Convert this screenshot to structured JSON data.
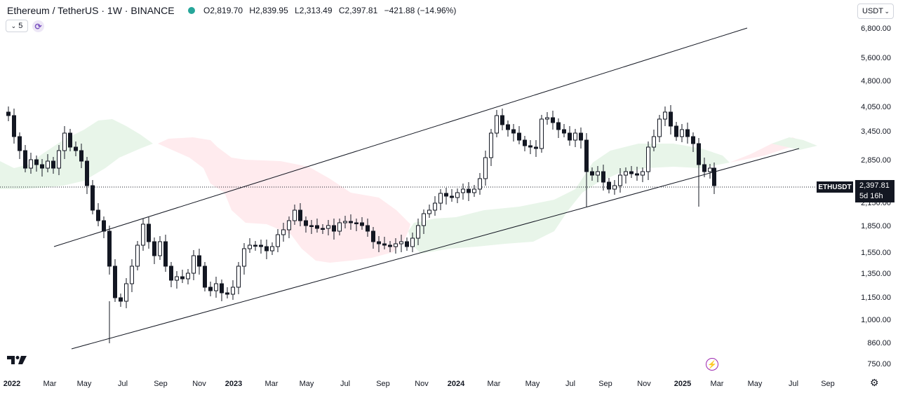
{
  "header": {
    "symbol": "Ethereum / TetherUS · 1W · BINANCE",
    "open": "O2,819.70",
    "high": "H2,839.95",
    "low": "L2,313.49",
    "close": "C2,397.81",
    "change": "−421.88 (−14.96%)"
  },
  "indicator": {
    "count": "5"
  },
  "currency_selector": {
    "value": "USDT"
  },
  "price_axis": {
    "ticks": [
      "6,800.00",
      "5,600.00",
      "4,800.00",
      "4,050.00",
      "3,450.00",
      "2,850.00",
      "2,450.00",
      "2,150.00",
      "1,850.00",
      "1,550.00",
      "1,350.00",
      "1,150.00",
      "1,000.00",
      "860.00",
      "750.00"
    ]
  },
  "time_axis": {
    "ticks": [
      {
        "label": "2022",
        "bold": true
      },
      {
        "label": "Mar",
        "bold": false
      },
      {
        "label": "May",
        "bold": false
      },
      {
        "label": "Jul",
        "bold": false
      },
      {
        "label": "Sep",
        "bold": false
      },
      {
        "label": "Nov",
        "bold": false
      },
      {
        "label": "2023",
        "bold": true
      },
      {
        "label": "Mar",
        "bold": false
      },
      {
        "label": "May",
        "bold": false
      },
      {
        "label": "Jul",
        "bold": false
      },
      {
        "label": "Sep",
        "bold": false
      },
      {
        "label": "Nov",
        "bold": false
      },
      {
        "label": "2024",
        "bold": true
      },
      {
        "label": "Mar",
        "bold": false
      },
      {
        "label": "May",
        "bold": false
      },
      {
        "label": "Jul",
        "bold": false
      },
      {
        "label": "Sep",
        "bold": false
      },
      {
        "label": "Nov",
        "bold": false
      },
      {
        "label": "2025",
        "bold": true
      },
      {
        "label": "Mar",
        "bold": false
      },
      {
        "label": "May",
        "bold": false
      },
      {
        "label": "Jul",
        "bold": false
      },
      {
        "label": "Sep",
        "bold": false
      }
    ]
  },
  "last_price": {
    "symbol": "ETHUSDT",
    "price": "2,397.81",
    "countdown": "5d 16h"
  },
  "colors": {
    "up_candle": "#ffffff",
    "down_candle": "#131722",
    "cloud_bull": "#c8e6c9",
    "cloud_bear": "#ffcdd2",
    "trend_line": "#131722",
    "accent": "#9c27b0"
  },
  "chart_data": {
    "type": "candlestick",
    "title": "",
    "scale": "log",
    "ylim": [
      700,
      7500
    ],
    "x": [
      "2022",
      "Mar",
      "May",
      "Jul",
      "Sep",
      "Nov",
      "2023",
      "Mar",
      "May",
      "Jul",
      "Sep",
      "Nov",
      "2024",
      "Mar",
      "May",
      "Jul",
      "Sep",
      "Nov",
      "2025",
      "Mar"
    ],
    "closes_approx": [
      3800,
      2950,
      2700,
      3300,
      1850,
      1100,
      1550,
      1600,
      1300,
      1200,
      1600,
      1700,
      1850,
      1800,
      1560,
      2050,
      2250,
      3800,
      3050,
      3700,
      3400,
      3050,
      2400,
      2650,
      2500,
      3500,
      3700,
      2400
    ]
  }
}
